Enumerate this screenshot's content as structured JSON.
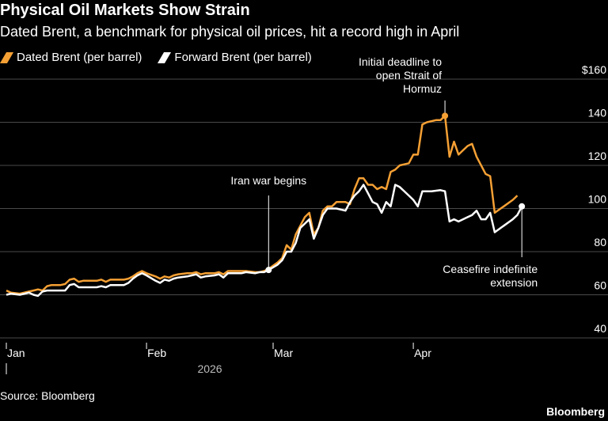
{
  "header": {
    "title": "Physical Oil Markets Show Strain",
    "subtitle": "Dated Brent, a benchmark for physical oil prices, hit a record high in April"
  },
  "footer": {
    "source": "Source: Bloomberg",
    "brand": "Bloomberg"
  },
  "colors": {
    "dated": "#f5a034",
    "forward": "#ffffff",
    "grid": "#4a4a4a"
  },
  "chart_data": {
    "type": "line",
    "title": "Physical Oil Markets Show Strain",
    "subtitle": "Dated Brent, a benchmark for physical oil prices, hit a record high in April",
    "x_unit": "days from Jan 1, 2026",
    "xlim": [
      0,
      125
    ],
    "x_ticks": [
      {
        "x": 0,
        "label": "Jan"
      },
      {
        "x": 31,
        "label": "Feb"
      },
      {
        "x": 59,
        "label": "Mar"
      },
      {
        "x": 90,
        "label": "Apr"
      }
    ],
    "year_label": "2026",
    "ylim": [
      40,
      160
    ],
    "y_ticks": [
      {
        "v": 160,
        "label": "$160"
      },
      {
        "v": 140,
        "label": "140"
      },
      {
        "v": 120,
        "label": "120"
      },
      {
        "v": 100,
        "label": "100"
      },
      {
        "v": 80,
        "label": "80"
      },
      {
        "v": 60,
        "label": "60"
      },
      {
        "v": 40,
        "label": "40"
      }
    ],
    "grid": true,
    "legend_position": "top-left",
    "series": [
      {
        "name": "Dated Brent (per barrel)",
        "color": "#f5a034",
        "points": [
          [
            0,
            62
          ],
          [
            1,
            61
          ],
          [
            3,
            60.5
          ],
          [
            5,
            61.5
          ],
          [
            6,
            62
          ],
          [
            7,
            62.5
          ],
          [
            8,
            62
          ],
          [
            9,
            64
          ],
          [
            10,
            64.5
          ],
          [
            12,
            64.5
          ],
          [
            13,
            65
          ],
          [
            14,
            67
          ],
          [
            15,
            67.5
          ],
          [
            16,
            66
          ],
          [
            17,
            66.5
          ],
          [
            19,
            66.5
          ],
          [
            20,
            66.5
          ],
          [
            21,
            67
          ],
          [
            22,
            66
          ],
          [
            23,
            67
          ],
          [
            25,
            67
          ],
          [
            26,
            67
          ],
          [
            27,
            67.5
          ],
          [
            28,
            68.5
          ],
          [
            29,
            70
          ],
          [
            30,
            71
          ],
          [
            31,
            70
          ],
          [
            33,
            68.5
          ],
          [
            34,
            67.5
          ],
          [
            35,
            68.5
          ],
          [
            36,
            68
          ],
          [
            37,
            69
          ],
          [
            38,
            69.5
          ],
          [
            40,
            70
          ],
          [
            41,
            70
          ],
          [
            42,
            70.5
          ],
          [
            43,
            69.5
          ],
          [
            44,
            70
          ],
          [
            46,
            70
          ],
          [
            47,
            70.5
          ],
          [
            48,
            69.5
          ],
          [
            49,
            71
          ],
          [
            50,
            71
          ],
          [
            52,
            71
          ],
          [
            53,
            71
          ],
          [
            55,
            70.5
          ],
          [
            56,
            70.5
          ],
          [
            57,
            71
          ],
          [
            58,
            72
          ],
          [
            60,
            75
          ],
          [
            61,
            77
          ],
          [
            62,
            83
          ],
          [
            63,
            81
          ],
          [
            64,
            88
          ],
          [
            65,
            92
          ],
          [
            66,
            96
          ],
          [
            67,
            98
          ],
          [
            68,
            88
          ],
          [
            69,
            91
          ],
          [
            70,
            99
          ],
          [
            71,
            101
          ],
          [
            72,
            101
          ],
          [
            73,
            103
          ],
          [
            75,
            103
          ],
          [
            76,
            102
          ],
          [
            77,
            109
          ],
          [
            78,
            114
          ],
          [
            79,
            114
          ],
          [
            80,
            111
          ],
          [
            81,
            111
          ],
          [
            82,
            109
          ],
          [
            83,
            110
          ],
          [
            84,
            109
          ],
          [
            85,
            117
          ],
          [
            86,
            118
          ],
          [
            87,
            120
          ],
          [
            89,
            121
          ],
          [
            90,
            125
          ],
          [
            91,
            125
          ],
          [
            92,
            139
          ],
          [
            93,
            140
          ],
          [
            95,
            141
          ],
          [
            96,
            141
          ],
          [
            97,
            143
          ],
          [
            98,
            124
          ],
          [
            99,
            131
          ],
          [
            100,
            125
          ],
          [
            101,
            127
          ],
          [
            102,
            129
          ],
          [
            103,
            130
          ],
          [
            104,
            124
          ],
          [
            106,
            116
          ],
          [
            107,
            115
          ],
          [
            108,
            98
          ],
          [
            110,
            101
          ],
          [
            112,
            104
          ],
          [
            113,
            106
          ]
        ]
      },
      {
        "name": "Forward Brent (per barrel)",
        "color": "#ffffff",
        "points": [
          [
            0,
            60
          ],
          [
            1,
            60.5
          ],
          [
            3,
            60
          ],
          [
            5,
            61
          ],
          [
            6,
            60
          ],
          [
            7,
            59.5
          ],
          [
            8,
            61.5
          ],
          [
            9,
            62
          ],
          [
            10,
            62
          ],
          [
            12,
            62
          ],
          [
            13,
            62
          ],
          [
            14,
            64.5
          ],
          [
            15,
            65
          ],
          [
            16,
            63.5
          ],
          [
            17,
            63.5
          ],
          [
            19,
            63.5
          ],
          [
            20,
            63.5
          ],
          [
            21,
            64
          ],
          [
            22,
            63.5
          ],
          [
            23,
            64.5
          ],
          [
            25,
            64.5
          ],
          [
            26,
            64.5
          ],
          [
            27,
            65.5
          ],
          [
            28,
            67.5
          ],
          [
            29,
            69
          ],
          [
            30,
            70
          ],
          [
            31,
            69
          ],
          [
            33,
            66.5
          ],
          [
            34,
            65.5
          ],
          [
            35,
            67
          ],
          [
            36,
            66.5
          ],
          [
            37,
            67.5
          ],
          [
            38,
            68
          ],
          [
            40,
            68.5
          ],
          [
            41,
            69
          ],
          [
            42,
            69.5
          ],
          [
            43,
            68
          ],
          [
            44,
            68.5
          ],
          [
            46,
            69
          ],
          [
            47,
            69.5
          ],
          [
            48,
            68
          ],
          [
            49,
            70
          ],
          [
            50,
            70
          ],
          [
            52,
            70
          ],
          [
            53,
            70.5
          ],
          [
            55,
            70
          ],
          [
            56,
            70.5
          ],
          [
            57,
            70.5
          ],
          [
            58,
            71.5
          ],
          [
            60,
            74
          ],
          [
            61,
            76
          ],
          [
            62,
            80
          ],
          [
            63,
            80
          ],
          [
            64,
            84
          ],
          [
            65,
            91
          ],
          [
            66,
            93
          ],
          [
            67,
            95
          ],
          [
            68,
            86
          ],
          [
            69,
            91
          ],
          [
            70,
            97
          ],
          [
            71,
            100
          ],
          [
            72,
            100
          ],
          [
            73,
            100
          ],
          [
            75,
            99
          ],
          [
            76,
            103
          ],
          [
            77,
            106
          ],
          [
            78,
            108
          ],
          [
            79,
            111
          ],
          [
            80,
            107
          ],
          [
            81,
            103
          ],
          [
            82,
            102
          ],
          [
            83,
            98
          ],
          [
            84,
            103
          ],
          [
            85,
            101
          ],
          [
            86,
            111
          ],
          [
            87,
            110
          ],
          [
            89,
            106
          ],
          [
            90,
            104
          ],
          [
            91,
            101
          ],
          [
            92,
            108
          ],
          [
            94,
            108
          ],
          [
            96,
            108.5
          ],
          [
            97,
            108
          ],
          [
            98,
            94
          ],
          [
            99,
            95
          ],
          [
            100,
            94
          ],
          [
            101,
            95
          ],
          [
            102,
            96
          ],
          [
            103,
            97
          ],
          [
            104,
            99
          ],
          [
            105,
            95
          ],
          [
            106,
            95
          ],
          [
            107,
            98
          ],
          [
            108,
            89
          ],
          [
            110,
            92
          ],
          [
            112,
            95
          ],
          [
            113,
            97
          ],
          [
            114,
            101
          ]
        ]
      }
    ],
    "annotations": [
      {
        "text": [
          "Iran war begins"
        ],
        "at": [
          58,
          71.5
        ],
        "series": 1
      },
      {
        "text": [
          "Initial deadline to",
          "open Strait of",
          "Hormuz"
        ],
        "at": [
          97,
          143
        ],
        "series": 0
      },
      {
        "text": [
          "Ceasefire indefinite",
          "extension"
        ],
        "at": [
          114,
          101
        ],
        "series": 1
      }
    ]
  }
}
